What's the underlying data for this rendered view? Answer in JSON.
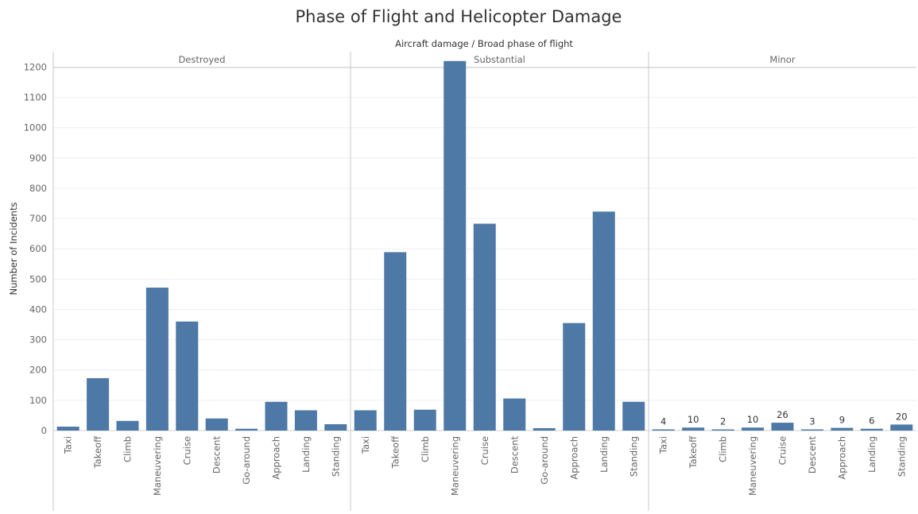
{
  "chart_data": {
    "type": "bar",
    "title": "Phase of Flight and Helicopter Damage",
    "subtitle": "Aircraft damage  /  Broad phase of flight",
    "ylabel": "Number of Incidents",
    "xlabel": "",
    "ylim": [
      0,
      1220
    ],
    "yticks": [
      0,
      100,
      200,
      300,
      400,
      500,
      600,
      700,
      800,
      900,
      1000,
      1100,
      1200
    ],
    "grid": true,
    "bar_color": "#4e79a7",
    "categories": [
      "Taxi",
      "Takeoff",
      "Climb",
      "Maneuvering",
      "Cruise",
      "Descent",
      "Go-around",
      "Approach",
      "Landing",
      "Standing"
    ],
    "panels": [
      {
        "name": "Destroyed",
        "values": [
          13,
          173,
          32,
          472,
          360,
          40,
          6,
          95,
          67,
          21
        ],
        "labels_shown": false
      },
      {
        "name": "Substantial",
        "values": [
          67,
          589,
          69,
          1220,
          683,
          106,
          8,
          355,
          723,
          95
        ],
        "labels_shown": false
      },
      {
        "name": "Minor",
        "values": [
          4,
          10,
          2,
          10,
          26,
          3,
          9,
          6,
          20
        ],
        "labels_shown": true,
        "categories": [
          "Taxi",
          "Takeoff",
          "Climb",
          "Maneuvering",
          "Cruise",
          "Descent",
          "Approach",
          "Landing",
          "Standing"
        ]
      }
    ]
  }
}
